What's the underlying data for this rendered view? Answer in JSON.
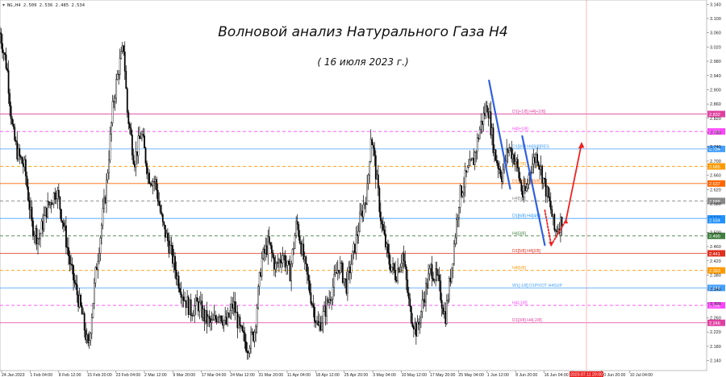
{
  "header": {
    "icon": "chart-icon",
    "info": "NG,H4  2.509 2.536 2.485 2.534"
  },
  "chart_data": {
    "type": "candlestick",
    "symbol": "NG,H4",
    "ohlc_header": "2.509 2.536 2.485 2.534",
    "title": "Волновой анализ Натурального Газа Н4",
    "subtitle": "( 16 июля 2023 г.)",
    "ylim": [
      2.112,
      3.152
    ],
    "y_ticks": [
      "3.140",
      "3.100",
      "3.060",
      "3.020",
      "2.980",
      "2.940",
      "2.900",
      "2.860",
      "2.820",
      "2.780",
      "2.740",
      "2.700",
      "2.660",
      "2.620",
      "2.580",
      "2.540",
      "2.500",
      "2.460",
      "2.420",
      "2.380",
      "2.340",
      "2.300",
      "2.260",
      "2.220",
      "2.180",
      "2.140"
    ],
    "x_ticks": [
      "24 Jan 2023",
      "1 Feb 04:00",
      "8 Feb 12:00",
      "15 Feb 20:00",
      "23 Feb 04:00",
      "2 Mar 12:00",
      "9 Mar 20:00",
      "17 Mar 04:00",
      "24 Mar 12:00",
      "31 Mar 20:00",
      "11 Apr 04:00",
      "18 Apr 12:00",
      "25 Apr 20:00",
      "3 May 04:00",
      "10 May 12:00",
      "17 May 20:00",
      "25 May 04:00",
      "1 Jun 12:00",
      "8 Jun 20:00",
      "16 Jun 04:00",
      "23 Jun 12:00",
      "30 Jun 20:00",
      "10 Jul 04:00"
    ],
    "x_highlight": "2023.07.11 20:00",
    "current_price": {
      "label": "2.534",
      "value": 2.534
    },
    "levels": [
      {
        "label": "D1[+1/8] H4[+2/8]",
        "price_label": "2.832",
        "value": 2.832,
        "color": "#e040a0",
        "style": "solid"
      },
      {
        "label": "H4[+1/8]",
        "price_label": "2.783",
        "value": 2.783,
        "color": "#ff44ff",
        "style": "dashed"
      },
      {
        "label": "D1[8/8] H4[8/8]RES",
        "price_label": "2.734",
        "value": 2.734,
        "color": "#44a0ff",
        "style": "solid"
      },
      {
        "label": "H4[7/8]",
        "price_label": "2.685",
        "value": 2.685,
        "color": "#ff9900",
        "style": "dashed"
      },
      {
        "label": "D1[7/8] H4[6/8]",
        "price_label": "2.637",
        "value": 2.637,
        "color": "#ff6600",
        "style": "solid"
      },
      {
        "label": "H4[5/8]",
        "price_label": "2.588",
        "value": 2.588,
        "color": "#888888",
        "style": "dashed"
      },
      {
        "label": "D1[6/8] H4[4/8]",
        "price_label": "2.539",
        "value": 2.539,
        "color": "#2090ff",
        "style": "solid"
      },
      {
        "label": "H4[3/8]",
        "price_label": "2.490",
        "value": 2.49,
        "color": "#408040",
        "style": "dashed"
      },
      {
        "label": "D1[5/8] H4[2/8]",
        "price_label": "2.441",
        "value": 2.441,
        "color": "#e03020",
        "style": "solid"
      },
      {
        "label": "H4[1/8]",
        "price_label": "2.393",
        "value": 2.393,
        "color": "#ff9900",
        "style": "dashed"
      },
      {
        "label": "W1[-1/8] D1PIVOT H4SUP",
        "price_label": "2.344",
        "value": 2.344,
        "color": "#44a0ff",
        "style": "solid"
      },
      {
        "label": "H4[-1/8]",
        "price_label": "2.295",
        "value": 2.295,
        "color": "#ff44ff",
        "style": "dashed"
      },
      {
        "label": "D1[3/8] H4[-2/8]",
        "price_label": "2.246",
        "value": 2.246,
        "color": "#e040a0",
        "style": "solid"
      }
    ],
    "price_path": [
      [
        0.0,
        3.06
      ],
      [
        0.01,
        2.96
      ],
      [
        0.018,
        2.78
      ],
      [
        0.025,
        2.72
      ],
      [
        0.035,
        2.68
      ],
      [
        0.045,
        2.52
      ],
      [
        0.055,
        2.48
      ],
      [
        0.065,
        2.56
      ],
      [
        0.08,
        2.62
      ],
      [
        0.09,
        2.52
      ],
      [
        0.1,
        2.4
      ],
      [
        0.115,
        2.28
      ],
      [
        0.125,
        2.17
      ],
      [
        0.135,
        2.38
      ],
      [
        0.15,
        2.62
      ],
      [
        0.16,
        2.86
      ],
      [
        0.168,
        2.96
      ],
      [
        0.175,
        3.02
      ],
      [
        0.18,
        2.84
      ],
      [
        0.19,
        2.7
      ],
      [
        0.2,
        2.78
      ],
      [
        0.21,
        2.66
      ],
      [
        0.22,
        2.64
      ],
      [
        0.23,
        2.52
      ],
      [
        0.24,
        2.46
      ],
      [
        0.25,
        2.38
      ],
      [
        0.26,
        2.32
      ],
      [
        0.27,
        2.28
      ],
      [
        0.28,
        2.3
      ],
      [
        0.29,
        2.26
      ],
      [
        0.3,
        2.24
      ],
      [
        0.31,
        2.28
      ],
      [
        0.32,
        2.24
      ],
      [
        0.33,
        2.3
      ],
      [
        0.34,
        2.22
      ],
      [
        0.35,
        2.18
      ],
      [
        0.36,
        2.22
      ],
      [
        0.37,
        2.42
      ],
      [
        0.38,
        2.47
      ],
      [
        0.39,
        2.4
      ],
      [
        0.4,
        2.44
      ],
      [
        0.41,
        2.38
      ],
      [
        0.42,
        2.53
      ],
      [
        0.43,
        2.42
      ],
      [
        0.44,
        2.32
      ],
      [
        0.45,
        2.23
      ],
      [
        0.46,
        2.28
      ],
      [
        0.47,
        2.34
      ],
      [
        0.48,
        2.41
      ],
      [
        0.49,
        2.35
      ],
      [
        0.5,
        2.44
      ],
      [
        0.51,
        2.54
      ],
      [
        0.52,
        2.62
      ],
      [
        0.525,
        2.78
      ],
      [
        0.53,
        2.7
      ],
      [
        0.54,
        2.52
      ],
      [
        0.55,
        2.42
      ],
      [
        0.56,
        2.38
      ],
      [
        0.57,
        2.44
      ],
      [
        0.58,
        2.28
      ],
      [
        0.59,
        2.22
      ],
      [
        0.6,
        2.32
      ],
      [
        0.61,
        2.4
      ],
      [
        0.62,
        2.36
      ],
      [
        0.63,
        2.26
      ],
      [
        0.64,
        2.42
      ],
      [
        0.65,
        2.6
      ],
      [
        0.66,
        2.66
      ],
      [
        0.67,
        2.7
      ],
      [
        0.68,
        2.8
      ],
      [
        0.69,
        2.86
      ],
      [
        0.7,
        2.72
      ],
      [
        0.71,
        2.66
      ],
      [
        0.72,
        2.74
      ],
      [
        0.73,
        2.7
      ],
      [
        0.74,
        2.6
      ],
      [
        0.745,
        2.62
      ],
      [
        0.75,
        2.68
      ],
      [
        0.76,
        2.72
      ],
      [
        0.77,
        2.64
      ],
      [
        0.78,
        2.56
      ],
      [
        0.785,
        2.5
      ],
      [
        0.79,
        2.52
      ],
      [
        0.795,
        2.534
      ]
    ],
    "annotations": {
      "wave_down_1": [
        [
          0.692,
          2.926
        ],
        [
          0.722,
          2.622
        ]
      ],
      "wave_down_2": [
        [
          0.739,
          2.77
        ],
        [
          0.771,
          2.464
        ]
      ],
      "projection_dotted": [
        [
          0.771,
          2.562
        ],
        [
          0.78,
          2.464
        ],
        [
          0.801,
          2.534
        ]
      ],
      "projection_up": [
        [
          0.801,
          2.534
        ],
        [
          0.823,
          2.749
        ]
      ]
    },
    "xlabel": "",
    "ylabel": ""
  },
  "colors": {
    "candles": "#000000",
    "wave": "#3060e0",
    "projection": "#ee2222",
    "highlight_label_bg": "#ee2222",
    "current_price_bg": "#2090ff"
  }
}
